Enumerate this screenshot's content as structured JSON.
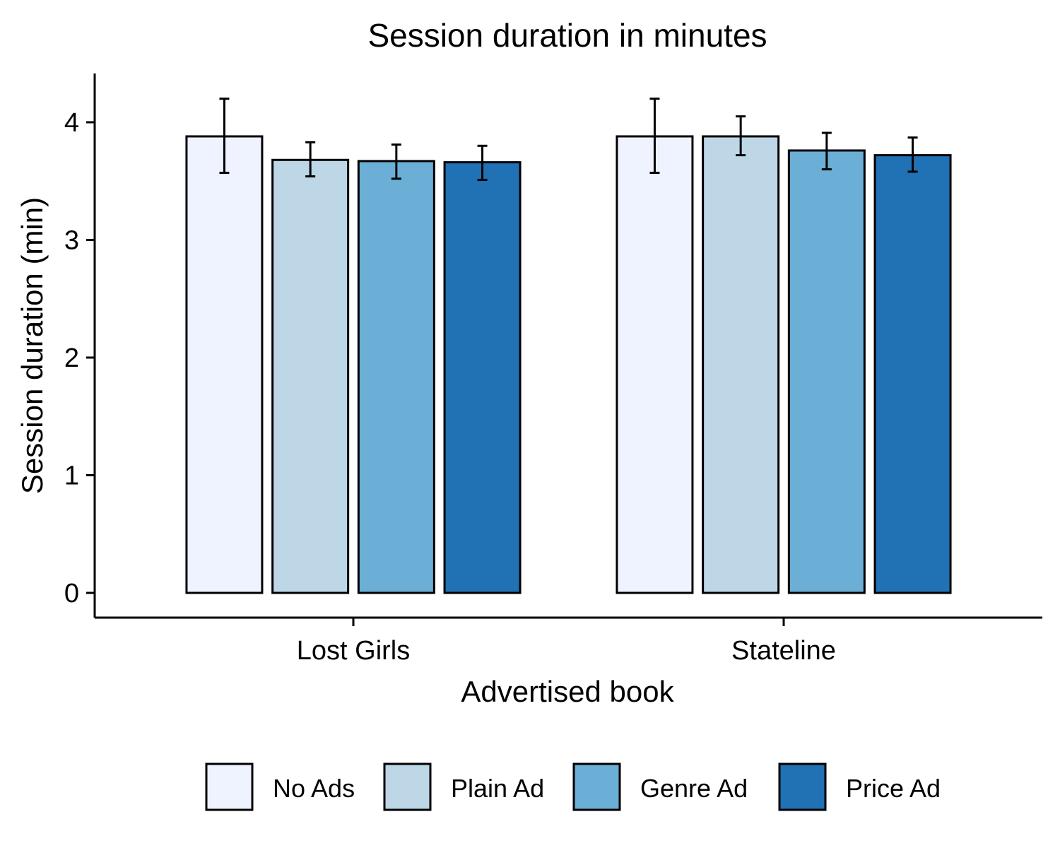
{
  "chart_data": {
    "type": "bar",
    "title": "Session duration in minutes",
    "xlabel": "Advertised book",
    "ylabel": "Session duration (min)",
    "categories": [
      "Lost Girls",
      "Stateline"
    ],
    "ylim": [
      0,
      4.4
    ],
    "yticks": [
      0,
      1,
      2,
      3,
      4
    ],
    "grid": false,
    "legend_position": "bottom",
    "series": [
      {
        "name": "No Ads",
        "color": "#eff3ff",
        "values": [
          3.88,
          3.88
        ],
        "err_low": [
          3.57,
          3.57
        ],
        "err_high": [
          4.2,
          4.2
        ]
      },
      {
        "name": "Plain Ad",
        "color": "#bdd7e7",
        "values": [
          3.68,
          3.88
        ],
        "err_low": [
          3.54,
          3.72
        ],
        "err_high": [
          3.83,
          4.05
        ]
      },
      {
        "name": "Genre Ad",
        "color": "#6baed6",
        "values": [
          3.67,
          3.76
        ],
        "err_low": [
          3.52,
          3.6
        ],
        "err_high": [
          3.81,
          3.91
        ]
      },
      {
        "name": "Price Ad",
        "color": "#2171b5",
        "values": [
          3.66,
          3.72
        ],
        "err_low": [
          3.51,
          3.58
        ],
        "err_high": [
          3.8,
          3.87
        ]
      }
    ]
  }
}
